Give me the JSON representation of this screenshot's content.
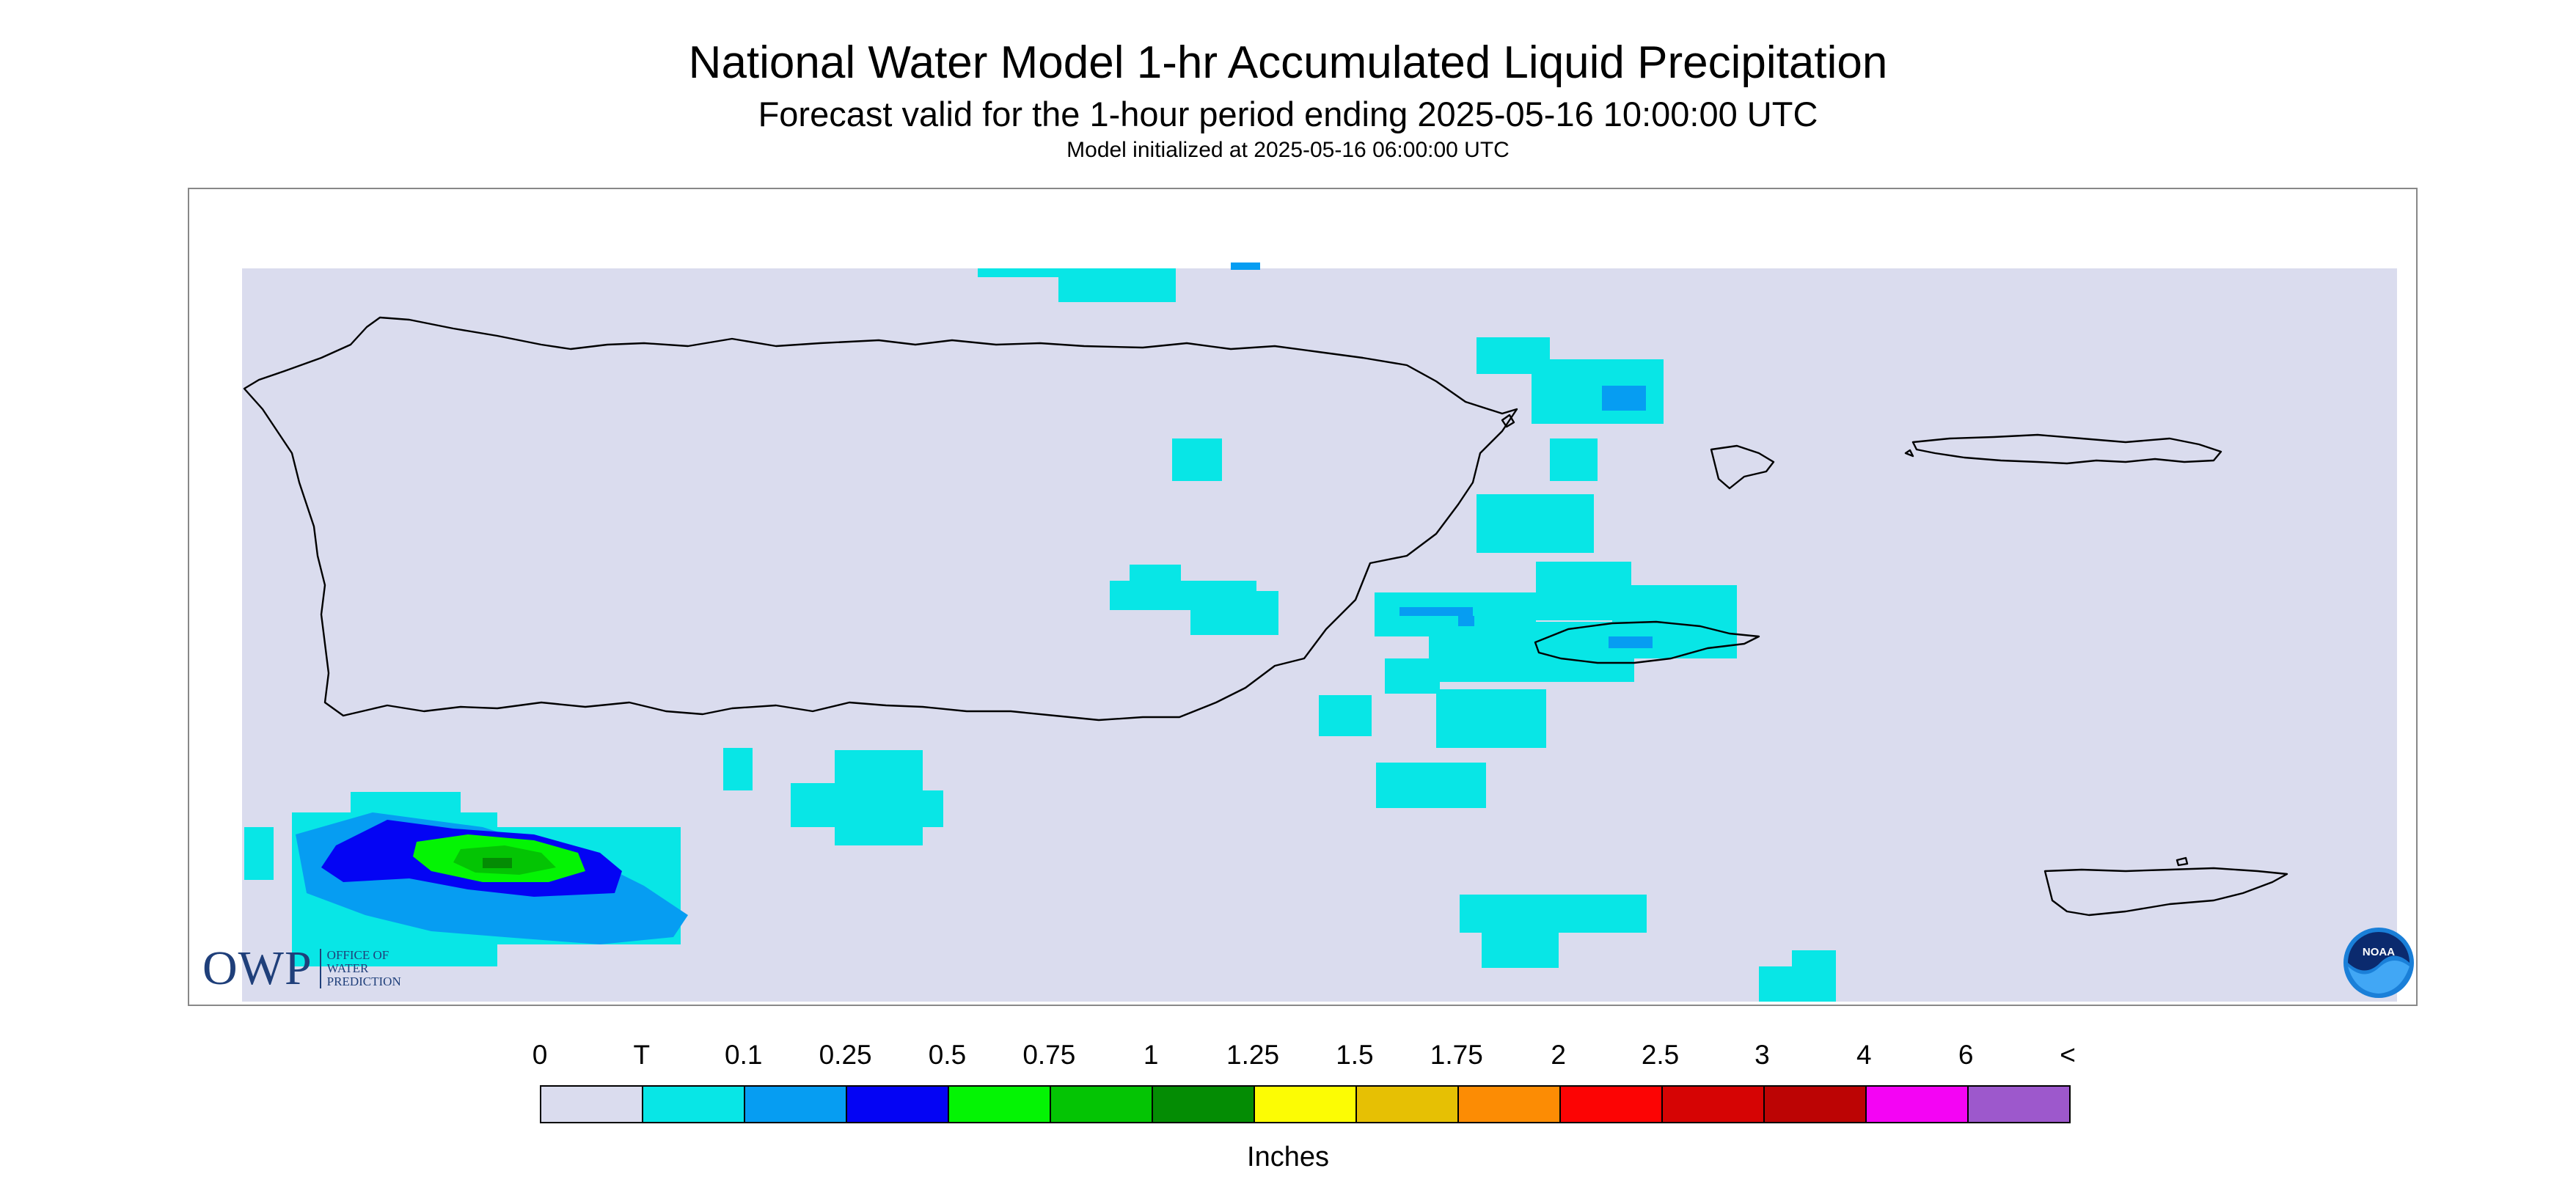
{
  "header": {
    "title": "National Water Model 1-hr Accumulated Liquid Precipitation",
    "subtitle": "Forecast valid for the 1-hour period ending 2025-05-16 10:00:00 UTC",
    "init": "Model initialized at 2025-05-16 06:00:00 UTC"
  },
  "logos": {
    "owp_letters": "OWP",
    "owp_lines": [
      "OFFICE OF",
      "WATER",
      "PREDICTION"
    ],
    "noaa_text": "NOAA"
  },
  "legend": {
    "labels": [
      "0",
      "T",
      "0.1",
      "0.25",
      "0.5",
      "0.75",
      "1",
      "1.25",
      "1.5",
      "1.75",
      "2",
      "2.5",
      "3",
      "4",
      "6",
      "<"
    ],
    "colors": [
      "#dadcee",
      "#08e6e6",
      "#069df2",
      "#0404f4",
      "#04f404",
      "#04c404",
      "#048c04",
      "#fcfc04",
      "#e6c004",
      "#fc8c04",
      "#fc0404",
      "#d60404",
      "#bc0404",
      "#f404f4",
      "#9d58cc"
    ],
    "units": "Inches"
  },
  "palette": {
    "no_data": "#ffffff",
    "background_zero": "#dadcee",
    "coastline": "#000000"
  }
}
